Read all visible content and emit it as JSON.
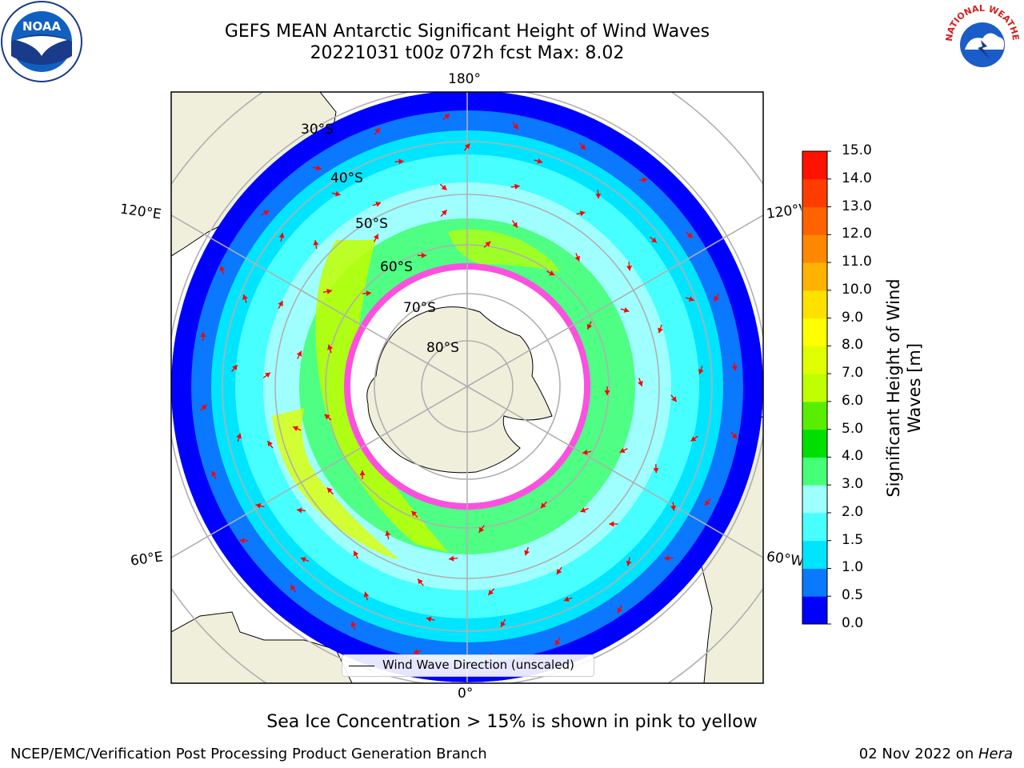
{
  "title_line1": "GEFS MEAN Antarctic Significant Height of Wind Waves",
  "title_line2": "20221031 t00z 072h fcst   Max: 8.02",
  "colorbar": {
    "label": "Significant Height of Wind Waves [m]",
    "ticks": [
      "0.0",
      "0.5",
      "1.0",
      "1.5",
      "2.0",
      "3.0",
      "4.0",
      "5.0",
      "6.0",
      "7.0",
      "8.0",
      "9.0",
      "10.0",
      "11.0",
      "12.0",
      "13.0",
      "14.0",
      "15.0"
    ],
    "colors": [
      "#0000ff",
      "#0a78ff",
      "#00e5ff",
      "#47ffff",
      "#9fffff",
      "#45ff76",
      "#00e000",
      "#59ee00",
      "#bfff00",
      "#dfff00",
      "#ffff00",
      "#ffe100",
      "#ffb300",
      "#ff8800",
      "#ff6200",
      "#ff3c00",
      "#ff1200"
    ]
  },
  "map": {
    "longitude_labels": {
      "top": "180°",
      "bottom": "0°",
      "left_upper": "120°E",
      "left_lower": "60°E",
      "right_upper": "120°W",
      "right_lower": "60°W"
    },
    "latitude_labels": [
      "30°S",
      "40°S",
      "50°S",
      "60°S",
      "70°S",
      "80°S"
    ],
    "colors": {
      "land": "#efefdc",
      "ocean_background": "#ffffff",
      "graticule": "#b0b0b0",
      "arrow": "#ff0000",
      "ice": "#ff4fe0"
    }
  },
  "legend": {
    "label": "Wind Wave Direction (unscaled)"
  },
  "ice_note": "Sea Ice Concentration > 15% is shown in pink to yellow",
  "footer": {
    "left": "NCEP/EMC/Verification Post Processing Product Generation Branch",
    "right_date": "02 Nov 2022 on ",
    "right_machine": "Hera"
  },
  "logos": {
    "noaa": "NOAA",
    "nws": "NATIONAL WEATHER SERVICE"
  }
}
